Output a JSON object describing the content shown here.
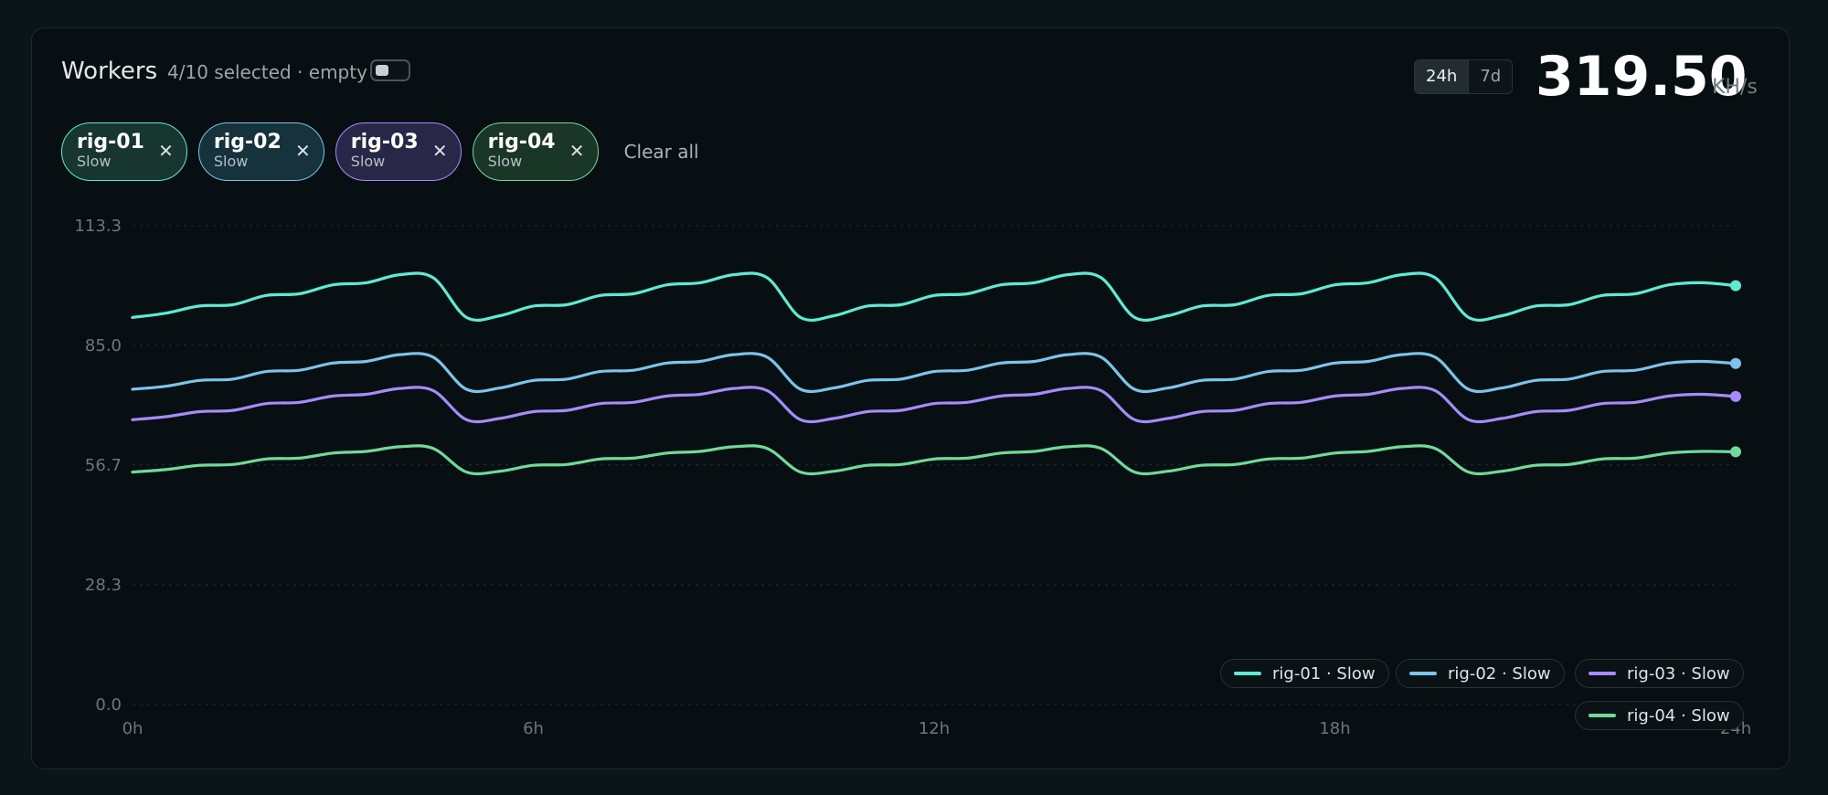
{
  "header": {
    "title": "Workers",
    "subtitle": "4/10 selected · empty",
    "range_options": [
      "24h",
      "7d"
    ],
    "range_active": "24h",
    "total_value": "319.50",
    "total_unit": "KH/s"
  },
  "chips": [
    {
      "name": "rig-01",
      "sub": "Slow",
      "color": "#5eead4",
      "bg": "#17362f"
    },
    {
      "name": "rig-02",
      "sub": "Slow",
      "color": "#7cc4ea",
      "bg": "#16323c"
    },
    {
      "name": "rig-03",
      "sub": "Slow",
      "color": "#a78bfa",
      "bg": "#292747"
    },
    {
      "name": "rig-04",
      "sub": "Slow",
      "color": "#72d99a",
      "bg": "#1a3627"
    }
  ],
  "clear_label": "Clear all",
  "close_glyph": "✕",
  "legend": [
    {
      "label": "rig-01 · Slow",
      "color": "#5eead4"
    },
    {
      "label": "rig-02 · Slow",
      "color": "#7cc4ea"
    },
    {
      "label": "rig-03 · Slow",
      "color": "#a78bfa"
    },
    {
      "label": "rig-04 · Slow",
      "color": "#72d99a"
    }
  ],
  "chart_data": {
    "type": "line",
    "title": "",
    "xlabel": "",
    "ylabel": "",
    "ylim": [
      0,
      113.3
    ],
    "xlim": [
      0,
      24
    ],
    "y_ticks": [
      "0.0",
      "28.3",
      "56.7",
      "85.0",
      "113.3"
    ],
    "x_ticks": [
      {
        "value": 0,
        "label": "0h"
      },
      {
        "value": 6,
        "label": "6h"
      },
      {
        "value": 12,
        "label": "12h"
      },
      {
        "value": 18,
        "label": "18h"
      },
      {
        "value": 24,
        "label": "24h"
      }
    ],
    "grid": true,
    "legend_position": "bottom-right",
    "x": [
      0,
      0.5,
      1,
      1.5,
      2,
      2.5,
      3,
      3.5,
      4,
      4.5,
      5,
      5.5,
      6,
      6.5,
      7,
      7.5,
      8,
      8.5,
      9,
      9.5,
      10,
      10.5,
      11,
      11.5,
      12,
      12.5,
      13,
      13.5,
      14,
      14.5,
      15,
      15.5,
      16,
      16.5,
      17,
      17.5,
      18,
      18.5,
      19,
      19.5,
      20,
      20.5,
      21,
      21.5,
      22,
      22.5,
      23,
      23.5,
      24
    ],
    "series": [
      {
        "name": "rig-01 · Slow",
        "color": "#5eead4",
        "values": [
          91.6,
          92.6,
          94.3,
          94.6,
          96.8,
          97.2,
          99.3,
          99.8,
          101.7,
          101.0,
          91.6,
          92.0,
          94.3,
          94.6,
          96.8,
          97.2,
          99.3,
          99.8,
          101.7,
          101.0,
          91.6,
          92.0,
          94.3,
          94.6,
          96.8,
          97.2,
          99.3,
          99.8,
          101.7,
          101.0,
          91.6,
          92.0,
          94.3,
          94.6,
          96.8,
          97.2,
          99.3,
          99.8,
          101.7,
          101.0,
          91.6,
          92.0,
          94.3,
          94.6,
          96.8,
          97.2,
          99.3,
          99.8,
          99.1
        ]
      },
      {
        "name": "rig-02 · Slow",
        "color": "#7cc4ea",
        "values": [
          74.6,
          75.3,
          76.7,
          77.0,
          78.8,
          79.1,
          80.8,
          81.2,
          82.8,
          82.2,
          74.6,
          74.9,
          76.7,
          77.0,
          78.8,
          79.1,
          80.8,
          81.2,
          82.8,
          82.2,
          74.6,
          74.9,
          76.7,
          77.0,
          78.8,
          79.1,
          80.8,
          81.2,
          82.8,
          82.2,
          74.6,
          74.9,
          76.7,
          77.0,
          78.8,
          79.1,
          80.8,
          81.2,
          82.8,
          82.2,
          74.6,
          74.9,
          76.7,
          77.0,
          78.8,
          79.1,
          80.8,
          81.2,
          80.7
        ]
      },
      {
        "name": "rig-03 · Slow",
        "color": "#a78bfa",
        "values": [
          67.4,
          68.1,
          69.3,
          69.6,
          71.2,
          71.5,
          73.0,
          73.4,
          74.8,
          74.3,
          67.4,
          67.7,
          69.3,
          69.6,
          71.2,
          71.5,
          73.0,
          73.4,
          74.8,
          74.3,
          67.4,
          67.7,
          69.3,
          69.6,
          71.2,
          71.5,
          73.0,
          73.4,
          74.8,
          74.3,
          67.4,
          67.7,
          69.3,
          69.6,
          71.2,
          71.5,
          73.0,
          73.4,
          74.8,
          74.3,
          67.4,
          67.7,
          69.3,
          69.6,
          71.2,
          71.5,
          73.0,
          73.4,
          72.9
        ]
      },
      {
        "name": "rig-04 · Slow",
        "color": "#72d99a",
        "values": [
          55.0,
          55.6,
          56.6,
          56.8,
          58.1,
          58.3,
          59.5,
          59.9,
          61.0,
          60.6,
          55.0,
          55.2,
          56.6,
          56.8,
          58.1,
          58.3,
          59.5,
          59.9,
          61.0,
          60.6,
          55.0,
          55.2,
          56.6,
          56.8,
          58.1,
          58.3,
          59.5,
          59.9,
          61.0,
          60.6,
          55.0,
          55.2,
          56.6,
          56.8,
          58.1,
          58.3,
          59.5,
          59.9,
          61.0,
          60.6,
          55.0,
          55.2,
          56.6,
          56.8,
          58.1,
          58.3,
          59.5,
          59.9,
          59.8
        ]
      }
    ]
  }
}
